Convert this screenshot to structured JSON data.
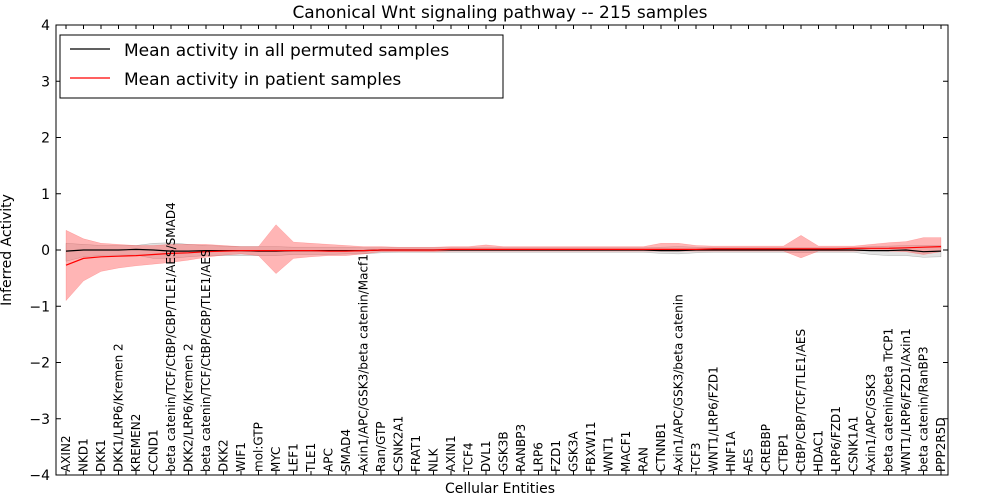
{
  "chart_data": {
    "type": "line",
    "title": "Canonical Wnt signaling pathway -- 215 samples",
    "xlabel": "Cellular Entities",
    "ylabel": "Inferred Activity",
    "ylim": [
      -4,
      4
    ],
    "yticks": [
      -4,
      -3,
      -2,
      -1,
      0,
      1,
      2,
      3,
      4
    ],
    "categories": [
      "AXIN2",
      "NKD1",
      "DKK1",
      "DKK1/LRP6/Kremen 2",
      "KREMEN2",
      "CCND1",
      "beta catenin/TCF/CtBP/CBP/TLE1/AES/SMAD4",
      "DKK2/LRP6/Kremen 2",
      "beta catenin/TCF/CtBP/CBP/TLE1/AES",
      "DKK2",
      "WIF1",
      "mol:GTP",
      "MYC",
      "LEF1",
      "TLE1",
      "APC",
      "SMAD4",
      "Axin1/APC/GSK3/beta catenin/Macf1",
      "Ran/GTP",
      "CSNK2A1",
      "FRAT1",
      "NLK",
      "AXIN1",
      "TCF4",
      "DVL1",
      "GSK3B",
      "RANBP3",
      "LRP6",
      "FZD1",
      "GSK3A",
      "FBXW11",
      "WNT1",
      "MACF1",
      "RAN",
      "CTNNB1",
      "Axin1/APC/GSK3/beta catenin",
      "TCF3",
      "WNT1/LRP6/FZD1",
      "HNF1A",
      "AES",
      "CREBBP",
      "CTBP1",
      "CtBP/CBP/TCF/TLE1/AES",
      "HDAC1",
      "LRP6/FZD1",
      "CSNK1A1",
      "Axin1/APC/GSK3",
      "beta catenin/beta TrCP1",
      "WNT1/LRP6/FZD1/Axin1",
      "beta catenin/RanBP3",
      "PPP2R5D"
    ],
    "legend_position": "upper-left",
    "series": [
      {
        "name": "Mean activity in all permuted samples",
        "color": "#000000",
        "band_color": "#a0a0a0",
        "values": [
          -0.02,
          0,
          0,
          0,
          0.01,
          0,
          -0.02,
          -0.02,
          -0.01,
          -0.01,
          -0.01,
          -0.02,
          -0.02,
          -0.01,
          -0.01,
          -0.01,
          -0.01,
          -0.01,
          0,
          0,
          0,
          0,
          0,
          0,
          0,
          0,
          0,
          0,
          0,
          0,
          0,
          0,
          0,
          0,
          -0.01,
          -0.01,
          0,
          0,
          0,
          0,
          0,
          0,
          0,
          0,
          0,
          0,
          -0.01,
          -0.01,
          0,
          -0.03,
          -0.02
        ],
        "lower": [
          -0.2,
          -0.12,
          -0.1,
          -0.09,
          -0.09,
          -0.15,
          -0.15,
          -0.12,
          -0.1,
          -0.1,
          -0.1,
          -0.1,
          -0.1,
          -0.08,
          -0.08,
          -0.08,
          -0.07,
          -0.07,
          -0.05,
          -0.04,
          -0.04,
          -0.04,
          -0.04,
          -0.04,
          -0.04,
          -0.04,
          -0.04,
          -0.04,
          -0.04,
          -0.04,
          -0.04,
          -0.04,
          -0.04,
          -0.04,
          -0.06,
          -0.07,
          -0.05,
          -0.04,
          -0.04,
          -0.04,
          -0.04,
          -0.04,
          -0.05,
          -0.04,
          -0.04,
          -0.04,
          -0.08,
          -0.1,
          -0.1,
          -0.13,
          -0.12
        ],
        "upper": [
          0.12,
          0.1,
          0.08,
          0.08,
          0.08,
          0.12,
          0.13,
          0.1,
          0.08,
          0.07,
          0.06,
          0.06,
          0.06,
          0.05,
          0.05,
          0.05,
          0.05,
          0.04,
          0.04,
          0.04,
          0.04,
          0.04,
          0.04,
          0.04,
          0.04,
          0.04,
          0.04,
          0.04,
          0.04,
          0.04,
          0.04,
          0.04,
          0.04,
          0.04,
          0.05,
          0.06,
          0.05,
          0.04,
          0.04,
          0.04,
          0.04,
          0.04,
          0.04,
          0.04,
          0.04,
          0.04,
          0.06,
          0.07,
          0.08,
          0.08,
          0.08
        ]
      },
      {
        "name": "Mean activity in patient samples",
        "color": "#ff0000",
        "band_color": "#ff5c5c",
        "values": [
          -0.27,
          -0.15,
          -0.12,
          -0.11,
          -0.1,
          -0.08,
          -0.06,
          -0.05,
          -0.03,
          -0.02,
          -0.01,
          -0.01,
          -0.01,
          -0.01,
          -0.01,
          -0.02,
          -0.02,
          -0.01,
          0,
          0,
          0,
          0,
          0.01,
          0.01,
          0.01,
          0.01,
          0.01,
          0.01,
          0.01,
          0.01,
          0.01,
          0.01,
          0.01,
          0.01,
          0.01,
          0.01,
          0.01,
          0.02,
          0.02,
          0.02,
          0.02,
          0.02,
          0.02,
          0.02,
          0.02,
          0.03,
          0.03,
          0.03,
          0.04,
          0.05,
          0.06
        ],
        "lower": [
          -0.9,
          -0.55,
          -0.38,
          -0.32,
          -0.28,
          -0.25,
          -0.22,
          -0.18,
          -0.13,
          -0.09,
          -0.07,
          -0.1,
          -0.42,
          -0.15,
          -0.12,
          -0.1,
          -0.1,
          -0.07,
          -0.03,
          -0.03,
          -0.03,
          -0.03,
          -0.02,
          -0.02,
          -0.02,
          -0.02,
          -0.02,
          -0.02,
          -0.02,
          -0.02,
          -0.02,
          -0.02,
          -0.02,
          -0.02,
          -0.02,
          -0.02,
          -0.02,
          -0.02,
          -0.02,
          -0.02,
          -0.02,
          -0.02,
          -0.14,
          -0.02,
          -0.02,
          -0.02,
          -0.01,
          -0.02,
          -0.03,
          -0.08,
          -0.03
        ],
        "upper": [
          0.35,
          0.2,
          0.12,
          0.1,
          0.08,
          0.08,
          0.1,
          0.1,
          0.1,
          0.08,
          0.06,
          0.06,
          0.45,
          0.14,
          0.12,
          0.1,
          0.08,
          0.06,
          0.06,
          0.05,
          0.05,
          0.05,
          0.06,
          0.06,
          0.09,
          0.06,
          0.06,
          0.06,
          0.06,
          0.06,
          0.06,
          0.06,
          0.06,
          0.06,
          0.12,
          0.12,
          0.08,
          0.07,
          0.07,
          0.07,
          0.07,
          0.07,
          0.26,
          0.07,
          0.07,
          0.07,
          0.1,
          0.13,
          0.15,
          0.22,
          0.22
        ]
      }
    ]
  }
}
